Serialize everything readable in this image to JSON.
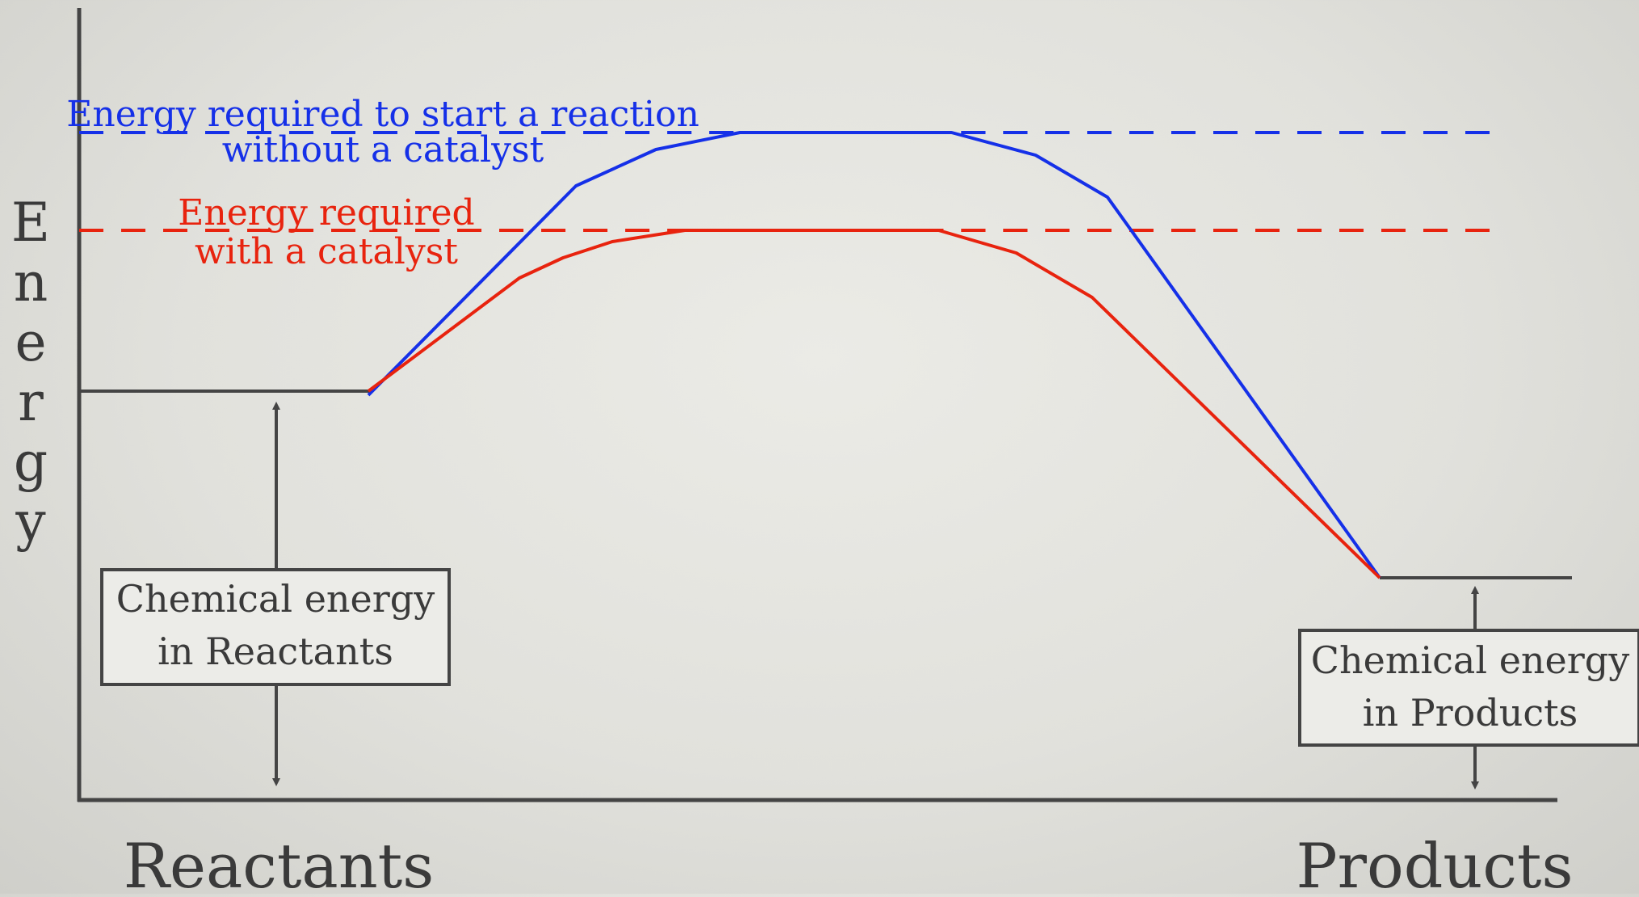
{
  "y_axis_label": "Energy",
  "x_labels": {
    "left": "Reactants",
    "right": "Products"
  },
  "dashed_lines": {
    "uncatalyzed": {
      "label_line1": "Energy required to start a reaction",
      "label_line2": "without a catalyst",
      "color": "#1530e8"
    },
    "catalyzed": {
      "label_line1": "Energy required",
      "label_line2": "with a catalyst",
      "color": "#e8230e"
    }
  },
  "boxes": {
    "reactants": {
      "line1": "Chemical energy",
      "line2": "in Reactants"
    },
    "products": {
      "line1": "Chemical energy",
      "line2": "in Products"
    }
  },
  "colors": {
    "axis": "#444444",
    "text": "#3a3a3a",
    "box_fill": "#ecece8"
  }
}
